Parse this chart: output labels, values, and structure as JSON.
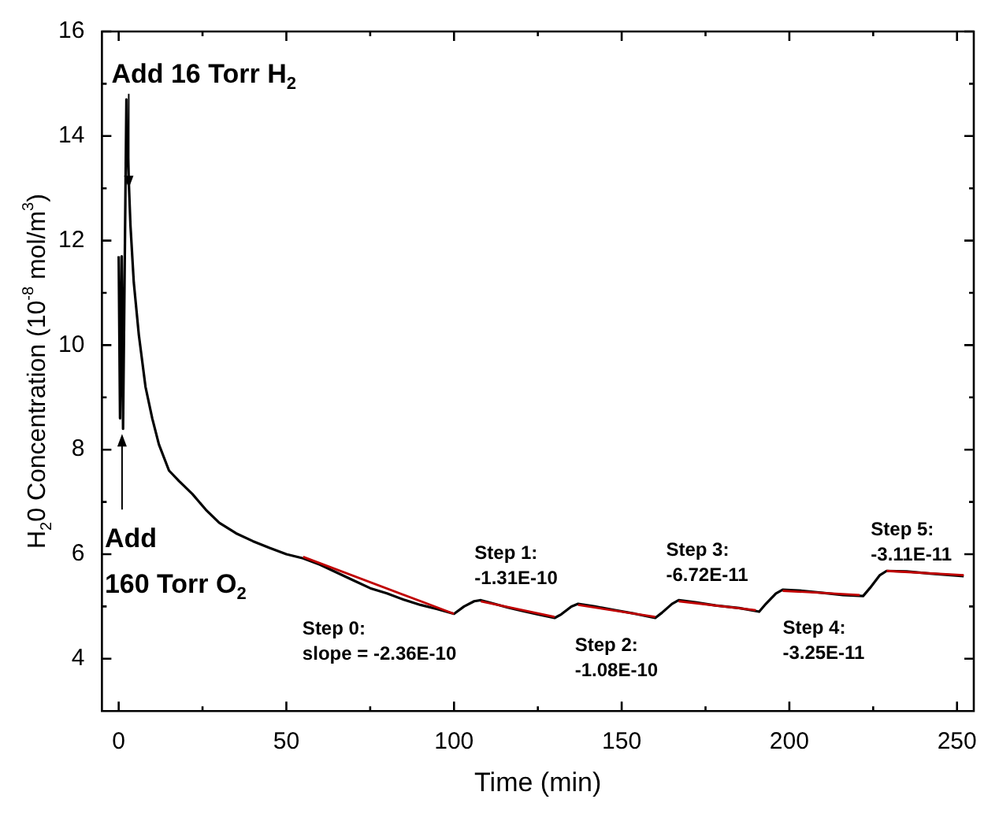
{
  "chart_data": {
    "type": "line",
    "xlabel": "Time (min)",
    "ylabel": "H$_{2}$0 Concentration (10$^{-8}$ mol/m$^{3}$)",
    "xlim": [
      -5,
      255
    ],
    "ylim": [
      3,
      16
    ],
    "xticks": [
      0,
      {
        "value": 25,
        "label": null
      },
      50,
      {
        "value": 75,
        "label": null
      },
      100,
      {
        "value": 125,
        "label": null
      },
      150,
      {
        "value": 175,
        "label": null
      },
      200,
      {
        "value": 225,
        "label": null
      },
      250
    ],
    "yticks": [
      4,
      {
        "value": 5,
        "label": null
      },
      6,
      {
        "value": 7,
        "label": null
      },
      8,
      {
        "value": 9,
        "label": null
      },
      10,
      {
        "value": 11,
        "label": null
      },
      12,
      {
        "value": 13,
        "label": null
      },
      14,
      {
        "value": 15,
        "label": null
      },
      16
    ],
    "grid": false,
    "legend": false,
    "marker": "none",
    "line_style": "solid",
    "series": [
      {
        "color": "#000000",
        "x": [
          0,
          0.4,
          0.9,
          1.3,
          2.3,
          2.8,
          3.5,
          4.5,
          6,
          8,
          10,
          12,
          15,
          18,
          22,
          26,
          30,
          35,
          40,
          45,
          50,
          55,
          60,
          65,
          70,
          75,
          80,
          85,
          90,
          95,
          100,
          103,
          106,
          108,
          112,
          116,
          120,
          125,
          130,
          132,
          135,
          137,
          142,
          148,
          154,
          160,
          162,
          165,
          167,
          172,
          178,
          185,
          191,
          193,
          196,
          198,
          204,
          210,
          216,
          222,
          224,
          227,
          229,
          235,
          242,
          252
        ],
        "values": [
          11.7,
          8.6,
          11.7,
          8.4,
          14.7,
          13.5,
          12.3,
          11.2,
          10.2,
          9.2,
          8.6,
          8.1,
          7.6,
          7.4,
          7.15,
          6.85,
          6.6,
          6.4,
          6.25,
          6.12,
          6.0,
          5.92,
          5.8,
          5.65,
          5.5,
          5.35,
          5.25,
          5.13,
          5.03,
          4.95,
          4.86,
          5.0,
          5.1,
          5.12,
          5.05,
          4.98,
          4.92,
          4.85,
          4.78,
          4.85,
          5.0,
          5.05,
          5.0,
          4.93,
          4.86,
          4.78,
          4.88,
          5.05,
          5.12,
          5.08,
          5.02,
          4.97,
          4.9,
          5.05,
          5.25,
          5.32,
          5.3,
          5.26,
          5.22,
          5.2,
          5.35,
          5.6,
          5.68,
          5.67,
          5.63,
          5.58
        ]
      },
      {
        "type": "line",
        "color": "#c00000",
        "x": [
          55,
          100
        ],
        "values": [
          5.95,
          4.86
        ]
      },
      {
        "type": "line",
        "color": "#c00000",
        "x": [
          108,
          130
        ],
        "values": [
          5.1,
          4.8
        ]
      },
      {
        "type": "line",
        "color": "#c00000",
        "x": [
          137,
          160
        ],
        "values": [
          5.03,
          4.8
        ]
      },
      {
        "type": "line",
        "color": "#c00000",
        "x": [
          167,
          190
        ],
        "values": [
          5.1,
          4.93
        ]
      },
      {
        "type": "line",
        "color": "#c00000",
        "x": [
          198,
          221
        ],
        "values": [
          5.3,
          5.22
        ]
      },
      {
        "type": "line",
        "color": "#c00000",
        "x": [
          229,
          252
        ],
        "values": [
          5.68,
          5.6
        ]
      }
    ],
    "annotations": [
      {
        "text": "Add 16 Torr H$_{2}$",
        "x": 3,
        "y": 13
      },
      {
        "text": "Add\n160 Torr O$_{2}$",
        "x": 1,
        "y": 8.3
      },
      {
        "text": "Step 0:\nslope = -2.36E-10",
        "x": 75,
        "y": 5.4
      },
      {
        "text": "Step 1:\n-1.31E-10",
        "x": 108,
        "y": 5.1
      },
      {
        "text": "Step 2:\n-1.08E-10",
        "x": 137,
        "y": 5.03
      },
      {
        "text": "Step 3:\n-6.72E-11",
        "x": 167,
        "y": 5.1
      },
      {
        "text": "Step 4:\n-3.25E-11",
        "x": 198,
        "y": 5.3
      },
      {
        "text": "Step 5:\n-3.11E-11",
        "x": 229,
        "y": 5.68
      }
    ]
  }
}
